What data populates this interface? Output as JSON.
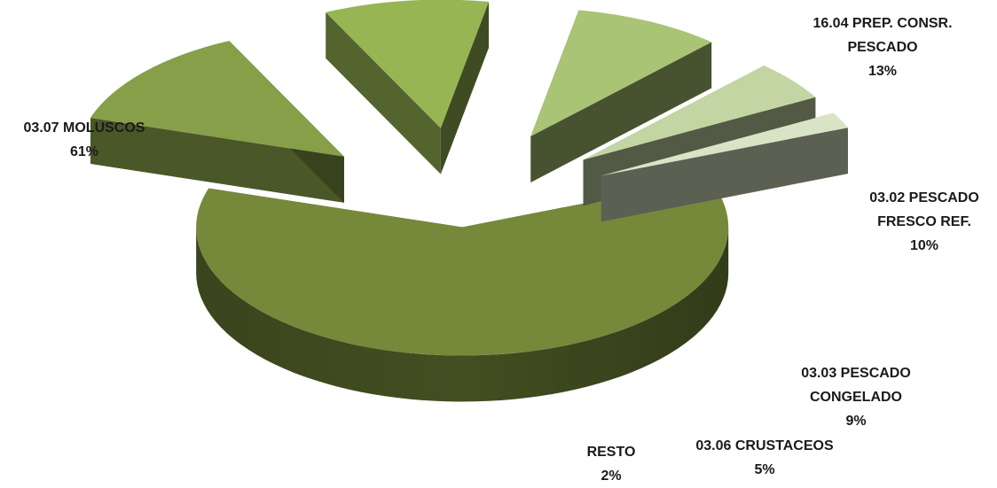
{
  "chart_data": {
    "type": "pie",
    "style": "3d-exploded",
    "title": "",
    "slices": [
      {
        "label": [
          "03.07 MOLUSCOS"
        ],
        "value": 61,
        "pct": "61%",
        "color": "#76893a"
      },
      {
        "label": [
          "16.04 PREP. CONSR.",
          "PESCADO"
        ],
        "value": 13,
        "pct": "13%",
        "color": "#869f48"
      },
      {
        "label": [
          "03.02  PESCADO",
          "FRESCO REF."
        ],
        "value": 10,
        "pct": "10%",
        "color": "#97b553"
      },
      {
        "label": [
          "03.03 PESCADO",
          "CONGELADO"
        ],
        "value": 9,
        "pct": "9%",
        "color": "#a9c475"
      },
      {
        "label": [
          "03.06 CRUSTACEOS"
        ],
        "value": 5,
        "pct": "5%",
        "color": "#c3d5a3"
      },
      {
        "label": [
          "RESTO"
        ],
        "value": 2,
        "pct": "2%",
        "color": "#d9e4c6"
      }
    ]
  }
}
